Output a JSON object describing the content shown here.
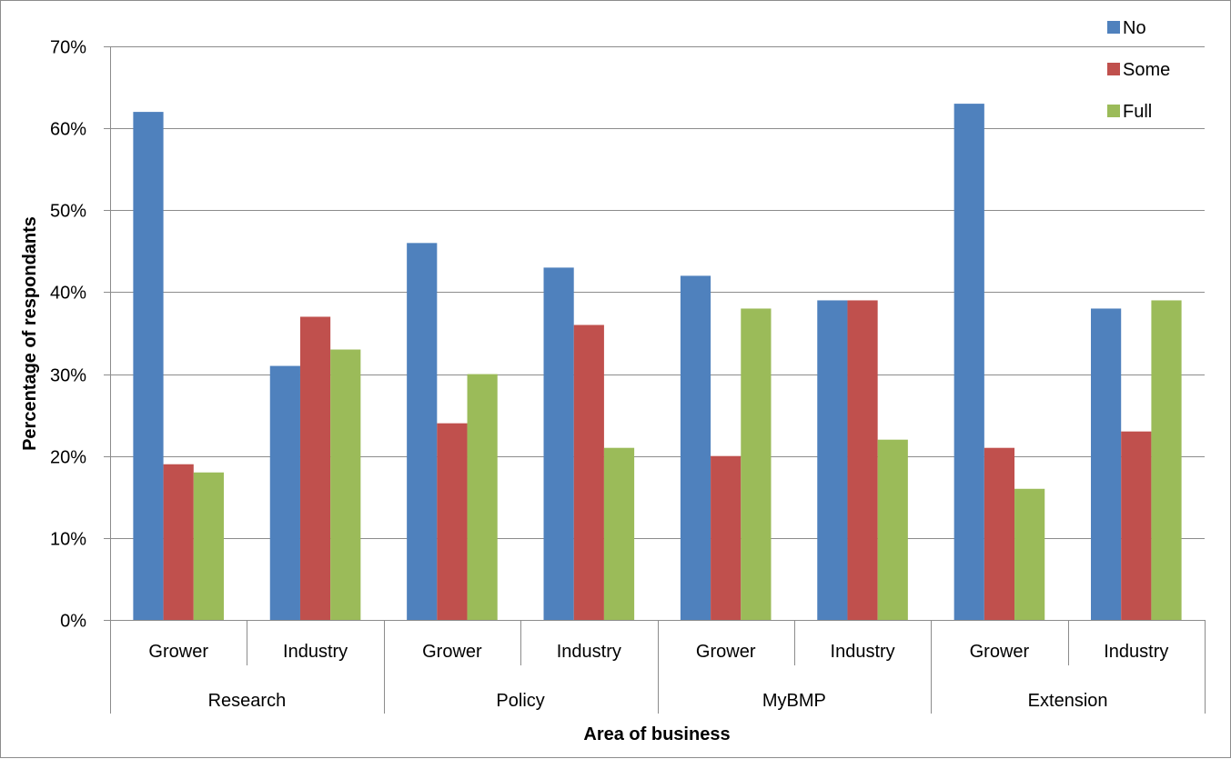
{
  "chart_data": {
    "type": "bar",
    "title": "",
    "xlabel": "Area of business",
    "ylabel": "Percentage of respondants",
    "ylim": [
      0,
      70
    ],
    "y_tick_step": 10,
    "y_tick_format": "percent",
    "grid": true,
    "legend_position": "top-right",
    "groups": [
      {
        "label": "Research",
        "categories": [
          "Grower",
          "Industry"
        ]
      },
      {
        "label": "Policy",
        "categories": [
          "Grower",
          "Industry"
        ]
      },
      {
        "label": "MyBMP",
        "categories": [
          "Grower",
          "Industry"
        ]
      },
      {
        "label": "Extension",
        "categories": [
          "Grower",
          "Industry"
        ]
      }
    ],
    "series": [
      {
        "name": "No",
        "color": "#4f81bd",
        "values": [
          62,
          31,
          46,
          43,
          42,
          39,
          63,
          38
        ]
      },
      {
        "name": "Some",
        "color": "#c0504d",
        "values": [
          19,
          37,
          24,
          36,
          20,
          39,
          21,
          23
        ]
      },
      {
        "name": "Full",
        "color": "#9bbb59",
        "values": [
          18,
          33,
          30,
          21,
          38,
          22,
          16,
          39
        ]
      }
    ]
  }
}
